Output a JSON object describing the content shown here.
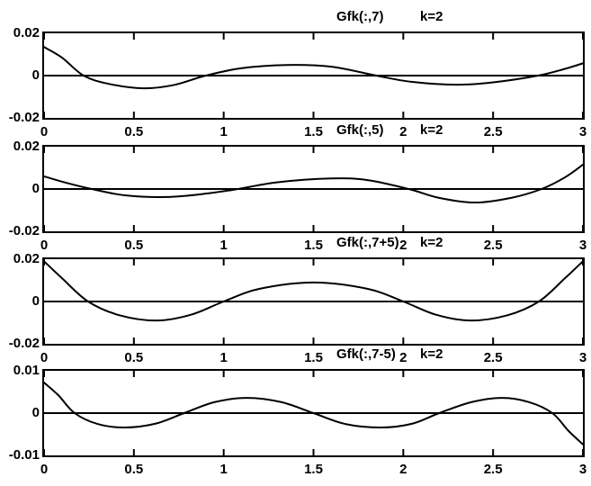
{
  "figure": {
    "background": "#ffffff",
    "line_color": "#000000"
  },
  "chart_data": [
    {
      "type": "line",
      "title": "Gfk(:,7)",
      "annotation": "k=2",
      "xlim": [
        0,
        3
      ],
      "ylim": [
        -0.02,
        0.02
      ],
      "xticks": [
        0,
        0.5,
        1,
        1.5,
        2,
        2.5,
        3
      ],
      "xtick_labels": [
        "0",
        "0.5",
        "1",
        "1.5",
        "2",
        "2.5",
        "3"
      ],
      "yticks": [
        0.02,
        0,
        -0.02
      ],
      "ytick_labels": [
        "0.02",
        "0",
        "-0.02"
      ],
      "grid": false,
      "legend": null,
      "zero_line": true,
      "series": [
        {
          "name": "Gfk(:,7)",
          "points": [
            [
              0,
              0.0135
            ],
            [
              0.1,
              0.0085
            ],
            [
              0.22,
              0.0
            ],
            [
              0.36,
              -0.0039
            ],
            [
              0.55,
              -0.006
            ],
            [
              0.72,
              -0.0045
            ],
            [
              0.9,
              0.0
            ],
            [
              1.1,
              0.0035
            ],
            [
              1.35,
              0.005
            ],
            [
              1.6,
              0.0042
            ],
            [
              1.85,
              0.0
            ],
            [
              2.05,
              -0.003
            ],
            [
              2.3,
              -0.0043
            ],
            [
              2.5,
              -0.0032
            ],
            [
              2.75,
              0.0
            ],
            [
              2.9,
              0.0032
            ],
            [
              3,
              0.0058
            ]
          ]
        }
      ]
    },
    {
      "type": "line",
      "title": "Gfk(:,5)",
      "annotation": "k=2",
      "xlim": [
        0,
        3
      ],
      "ylim": [
        -0.02,
        0.02
      ],
      "xticks": [
        0,
        0.5,
        1,
        1.5,
        2,
        2.5,
        3
      ],
      "xtick_labels": [
        "0",
        "0.5",
        "1",
        "1.5",
        "2",
        "2.5",
        "3"
      ],
      "yticks": [
        0.02,
        0,
        -0.02
      ],
      "ytick_labels": [
        "0.02",
        "0",
        "-0.02"
      ],
      "grid": false,
      "legend": null,
      "zero_line": true,
      "series": [
        {
          "name": "Gfk(:,5)",
          "points": [
            [
              0,
              0.006
            ],
            [
              0.12,
              0.003
            ],
            [
              0.265,
              0.0
            ],
            [
              0.45,
              -0.003
            ],
            [
              0.68,
              -0.0038
            ],
            [
              0.9,
              -0.0022
            ],
            [
              1.08,
              0.0
            ],
            [
              1.3,
              0.0032
            ],
            [
              1.6,
              0.005
            ],
            [
              1.8,
              0.0042
            ],
            [
              2.03,
              0.0
            ],
            [
              2.2,
              -0.0042
            ],
            [
              2.4,
              -0.0064
            ],
            [
              2.6,
              -0.0042
            ],
            [
              2.77,
              0.0
            ],
            [
              2.9,
              0.0055
            ],
            [
              3,
              0.0115
            ]
          ]
        }
      ]
    },
    {
      "type": "line",
      "title": "Gfk(:,7+5)",
      "annotation": "k=2",
      "xlim": [
        0,
        3
      ],
      "ylim": [
        -0.02,
        0.02
      ],
      "xticks": [
        0,
        0.5,
        1,
        1.5,
        2,
        2.5,
        3
      ],
      "xtick_labels": [
        "0",
        "0.5",
        "1",
        "1.5",
        "2",
        "2.5",
        "3"
      ],
      "yticks": [
        0.02,
        0,
        -0.02
      ],
      "ytick_labels": [
        "0.02",
        "0",
        "-0.02"
      ],
      "grid": false,
      "legend": null,
      "zero_line": true,
      "series": [
        {
          "name": "Gfk(:,7+5)",
          "points": [
            [
              0,
              0.019
            ],
            [
              0.1,
              0.011
            ],
            [
              0.245,
              0.0
            ],
            [
              0.42,
              -0.0065
            ],
            [
              0.63,
              -0.009
            ],
            [
              0.82,
              -0.0062
            ],
            [
              1.0,
              0.0
            ],
            [
              1.2,
              0.006
            ],
            [
              1.5,
              0.009
            ],
            [
              1.8,
              0.006
            ],
            [
              2.0,
              0.0
            ],
            [
              2.18,
              -0.0062
            ],
            [
              2.37,
              -0.009
            ],
            [
              2.58,
              -0.0065
            ],
            [
              2.755,
              0.0
            ],
            [
              2.9,
              0.011
            ],
            [
              3,
              0.019
            ]
          ]
        }
      ]
    },
    {
      "type": "line",
      "title": "Gfk(:,7-5)",
      "annotation": "k=2",
      "xlim": [
        0,
        3
      ],
      "ylim": [
        -0.01,
        0.01
      ],
      "xticks": [
        0,
        0.5,
        1,
        1.5,
        2,
        2.5,
        3
      ],
      "xtick_labels": [
        "0",
        "0.5",
        "1",
        "1.5",
        "2",
        "2.5",
        "3"
      ],
      "yticks": [
        0.01,
        0,
        -0.01
      ],
      "ytick_labels": [
        "0.01",
        "0",
        "-0.01"
      ],
      "grid": false,
      "legend": null,
      "zero_line": true,
      "series": [
        {
          "name": "Gfk(:,7-5)",
          "points": [
            [
              0,
              0.0072
            ],
            [
              0.08,
              0.0042
            ],
            [
              0.17,
              0.0
            ],
            [
              0.3,
              -0.0026
            ],
            [
              0.45,
              -0.0034
            ],
            [
              0.62,
              -0.0025
            ],
            [
              0.78,
              0.0
            ],
            [
              0.95,
              0.0026
            ],
            [
              1.13,
              0.0036
            ],
            [
              1.32,
              0.0026
            ],
            [
              1.5,
              0.0
            ],
            [
              1.68,
              -0.0026
            ],
            [
              1.88,
              -0.0034
            ],
            [
              2.05,
              -0.0025
            ],
            [
              2.2,
              0.0
            ],
            [
              2.38,
              0.0026
            ],
            [
              2.55,
              0.0036
            ],
            [
              2.7,
              0.0026
            ],
            [
              2.83,
              0.0
            ],
            [
              2.92,
              -0.0042
            ],
            [
              3,
              -0.0074
            ]
          ]
        }
      ]
    }
  ]
}
